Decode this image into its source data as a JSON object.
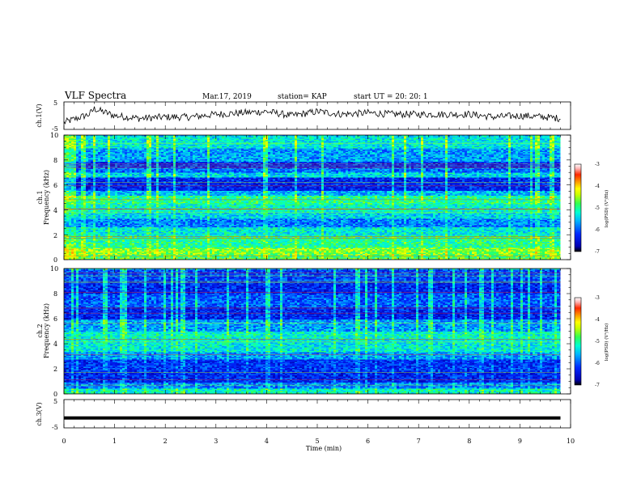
{
  "header": {
    "title": "VLF Spectra",
    "date": "Mar.17, 2019",
    "station": "station= KAP",
    "start": "start  UT  =   20: 20: 1"
  },
  "colors": {
    "colormap": [
      "#000000",
      "#0000c8",
      "#0030ff",
      "#00b4ff",
      "#00ffe0",
      "#32ff64",
      "#b4ff00",
      "#ffff00",
      "#ffb400",
      "#ff3200",
      "#ffc8c8",
      "#ffffff"
    ]
  },
  "chart_data": [
    {
      "type": "line",
      "id": "ch1-waveform",
      "ylabel": "ch.1(V)",
      "ylim": [
        -5,
        5
      ],
      "yticks": [
        "5",
        "-5"
      ],
      "xlim": [
        0,
        10
      ],
      "description_values_min": [
        0.0,
        0.5,
        0.6,
        1.0,
        1.5,
        2.0,
        2.5,
        3.0,
        3.5,
        4.0,
        4.5,
        5.0,
        5.5,
        6.0,
        6.5,
        7.0,
        7.5,
        8.0,
        8.5,
        9.0,
        9.5,
        9.8
      ],
      "y": [
        -2.5,
        0.5,
        2.5,
        0.0,
        -1.0,
        -0.5,
        -0.5,
        0.5,
        1.0,
        1.5,
        0.0,
        1.5,
        0.5,
        1.0,
        0.5,
        0.5,
        0.5,
        0.5,
        -0.5,
        0.0,
        -0.5,
        -1.0
      ]
    },
    {
      "type": "heatmap",
      "id": "ch1-spectrogram",
      "ylabel": "ch.1\nFrequency (kHz)",
      "ylabel_line1": "ch.1",
      "ylabel_line2": "Frequency (kHz)",
      "ylim": [
        0,
        10
      ],
      "yticks": [
        "0",
        "2",
        "4",
        "6",
        "8",
        "10"
      ],
      "xlim": [
        0,
        10
      ],
      "data_end_min": 9.8,
      "colorbar": {
        "label": "log(PSD) (V²/Hz)",
        "range": [
          -7,
          -3
        ],
        "ticks": [
          "-3",
          "-4",
          "-5",
          "-6",
          "-7"
        ]
      },
      "bands_khz": [
        {
          "from": 0.0,
          "to": 0.4,
          "level": -4.8
        },
        {
          "from": 0.4,
          "to": 1.0,
          "level": -4.6
        },
        {
          "from": 1.0,
          "to": 2.0,
          "level": -5.0
        },
        {
          "from": 2.0,
          "to": 2.6,
          "level": -5.3
        },
        {
          "from": 2.6,
          "to": 3.3,
          "level": -5.8
        },
        {
          "from": 3.3,
          "to": 3.8,
          "level": -5.4
        },
        {
          "from": 3.8,
          "to": 4.5,
          "level": -5.2
        },
        {
          "from": 4.5,
          "to": 5.2,
          "level": -5.0
        },
        {
          "from": 5.2,
          "to": 5.6,
          "level": -5.6
        },
        {
          "from": 5.6,
          "to": 6.6,
          "level": -6.3
        },
        {
          "from": 6.6,
          "to": 7.0,
          "level": -5.4
        },
        {
          "from": 7.0,
          "to": 7.4,
          "level": -5.9
        },
        {
          "from": 7.4,
          "to": 7.9,
          "level": -6.2
        },
        {
          "from": 7.9,
          "to": 9.0,
          "level": -5.7
        },
        {
          "from": 9.0,
          "to": 10.0,
          "level": -5.3
        }
      ]
    },
    {
      "type": "heatmap",
      "id": "ch2-spectrogram",
      "ylabel": "ch.2\nFrequency (kHz)",
      "ylabel_line1": "ch.2",
      "ylabel_line2": "Frequency (kHz)",
      "ylim": [
        0,
        10
      ],
      "yticks": [
        "0",
        "2",
        "4",
        "6",
        "8",
        "10"
      ],
      "xlim": [
        0,
        10
      ],
      "data_end_min": 9.8,
      "colorbar": {
        "label": "log(PSD) (V²/Hz)",
        "range": [
          -7,
          -3
        ],
        "ticks": [
          "-3",
          "-4",
          "-5",
          "-6",
          "-7"
        ]
      },
      "bands_khz": [
        {
          "from": 0.0,
          "to": 0.5,
          "level": -5.2
        },
        {
          "from": 0.5,
          "to": 1.0,
          "level": -5.8
        },
        {
          "from": 1.0,
          "to": 1.8,
          "level": -6.3
        },
        {
          "from": 1.8,
          "to": 2.8,
          "level": -6.2
        },
        {
          "from": 2.8,
          "to": 3.4,
          "level": -5.7
        },
        {
          "from": 3.4,
          "to": 4.4,
          "level": -5.3
        },
        {
          "from": 4.4,
          "to": 5.0,
          "level": -5.2
        },
        {
          "from": 5.0,
          "to": 6.0,
          "level": -5.7
        },
        {
          "from": 6.0,
          "to": 7.0,
          "level": -6.3
        },
        {
          "from": 7.0,
          "to": 8.0,
          "level": -6.0
        },
        {
          "from": 8.0,
          "to": 9.0,
          "level": -6.3
        },
        {
          "from": 9.0,
          "to": 10.0,
          "level": -6.1
        }
      ]
    },
    {
      "type": "line",
      "id": "ch3-waveform",
      "ylabel": "ch.3(V)",
      "ylim": [
        -5,
        5
      ],
      "yticks": [
        "5",
        "-5"
      ],
      "xlim": [
        0,
        10
      ],
      "x": [
        0.0,
        9.8
      ],
      "y": [
        -1.5,
        -1.5
      ]
    }
  ],
  "xaxis": {
    "label": "Time  (min)",
    "ticks": [
      "0",
      "1",
      "2",
      "3",
      "4",
      "5",
      "6",
      "7",
      "8",
      "9",
      "10"
    ]
  }
}
